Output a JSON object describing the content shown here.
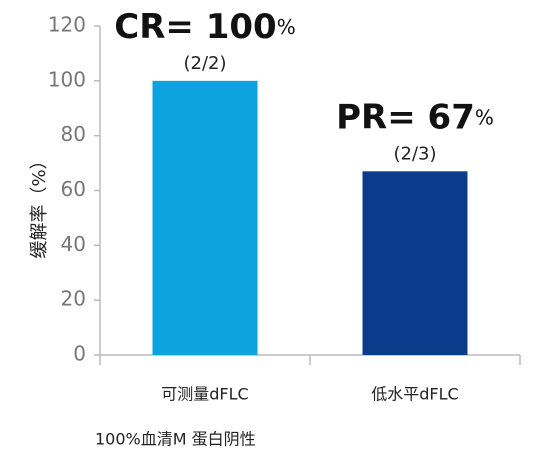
{
  "chart_data": {
    "type": "bar",
    "y_label": "缓解率（%）",
    "categories": [
      "可测量dFLC",
      "低水平dFLC"
    ],
    "values": [
      100,
      67
    ],
    "value_labels": [
      "CR= 100%",
      "PR= 67%"
    ],
    "bar_notes": [
      "(2/2)",
      "(2/3)"
    ],
    "colors": [
      "#0ca3df",
      "#0b3c8c"
    ],
    "ylim": [
      0,
      120
    ],
    "yticks": [
      0,
      20,
      40,
      60,
      80,
      100,
      120
    ],
    "footnote": "100%血清M 蛋白阴性"
  }
}
